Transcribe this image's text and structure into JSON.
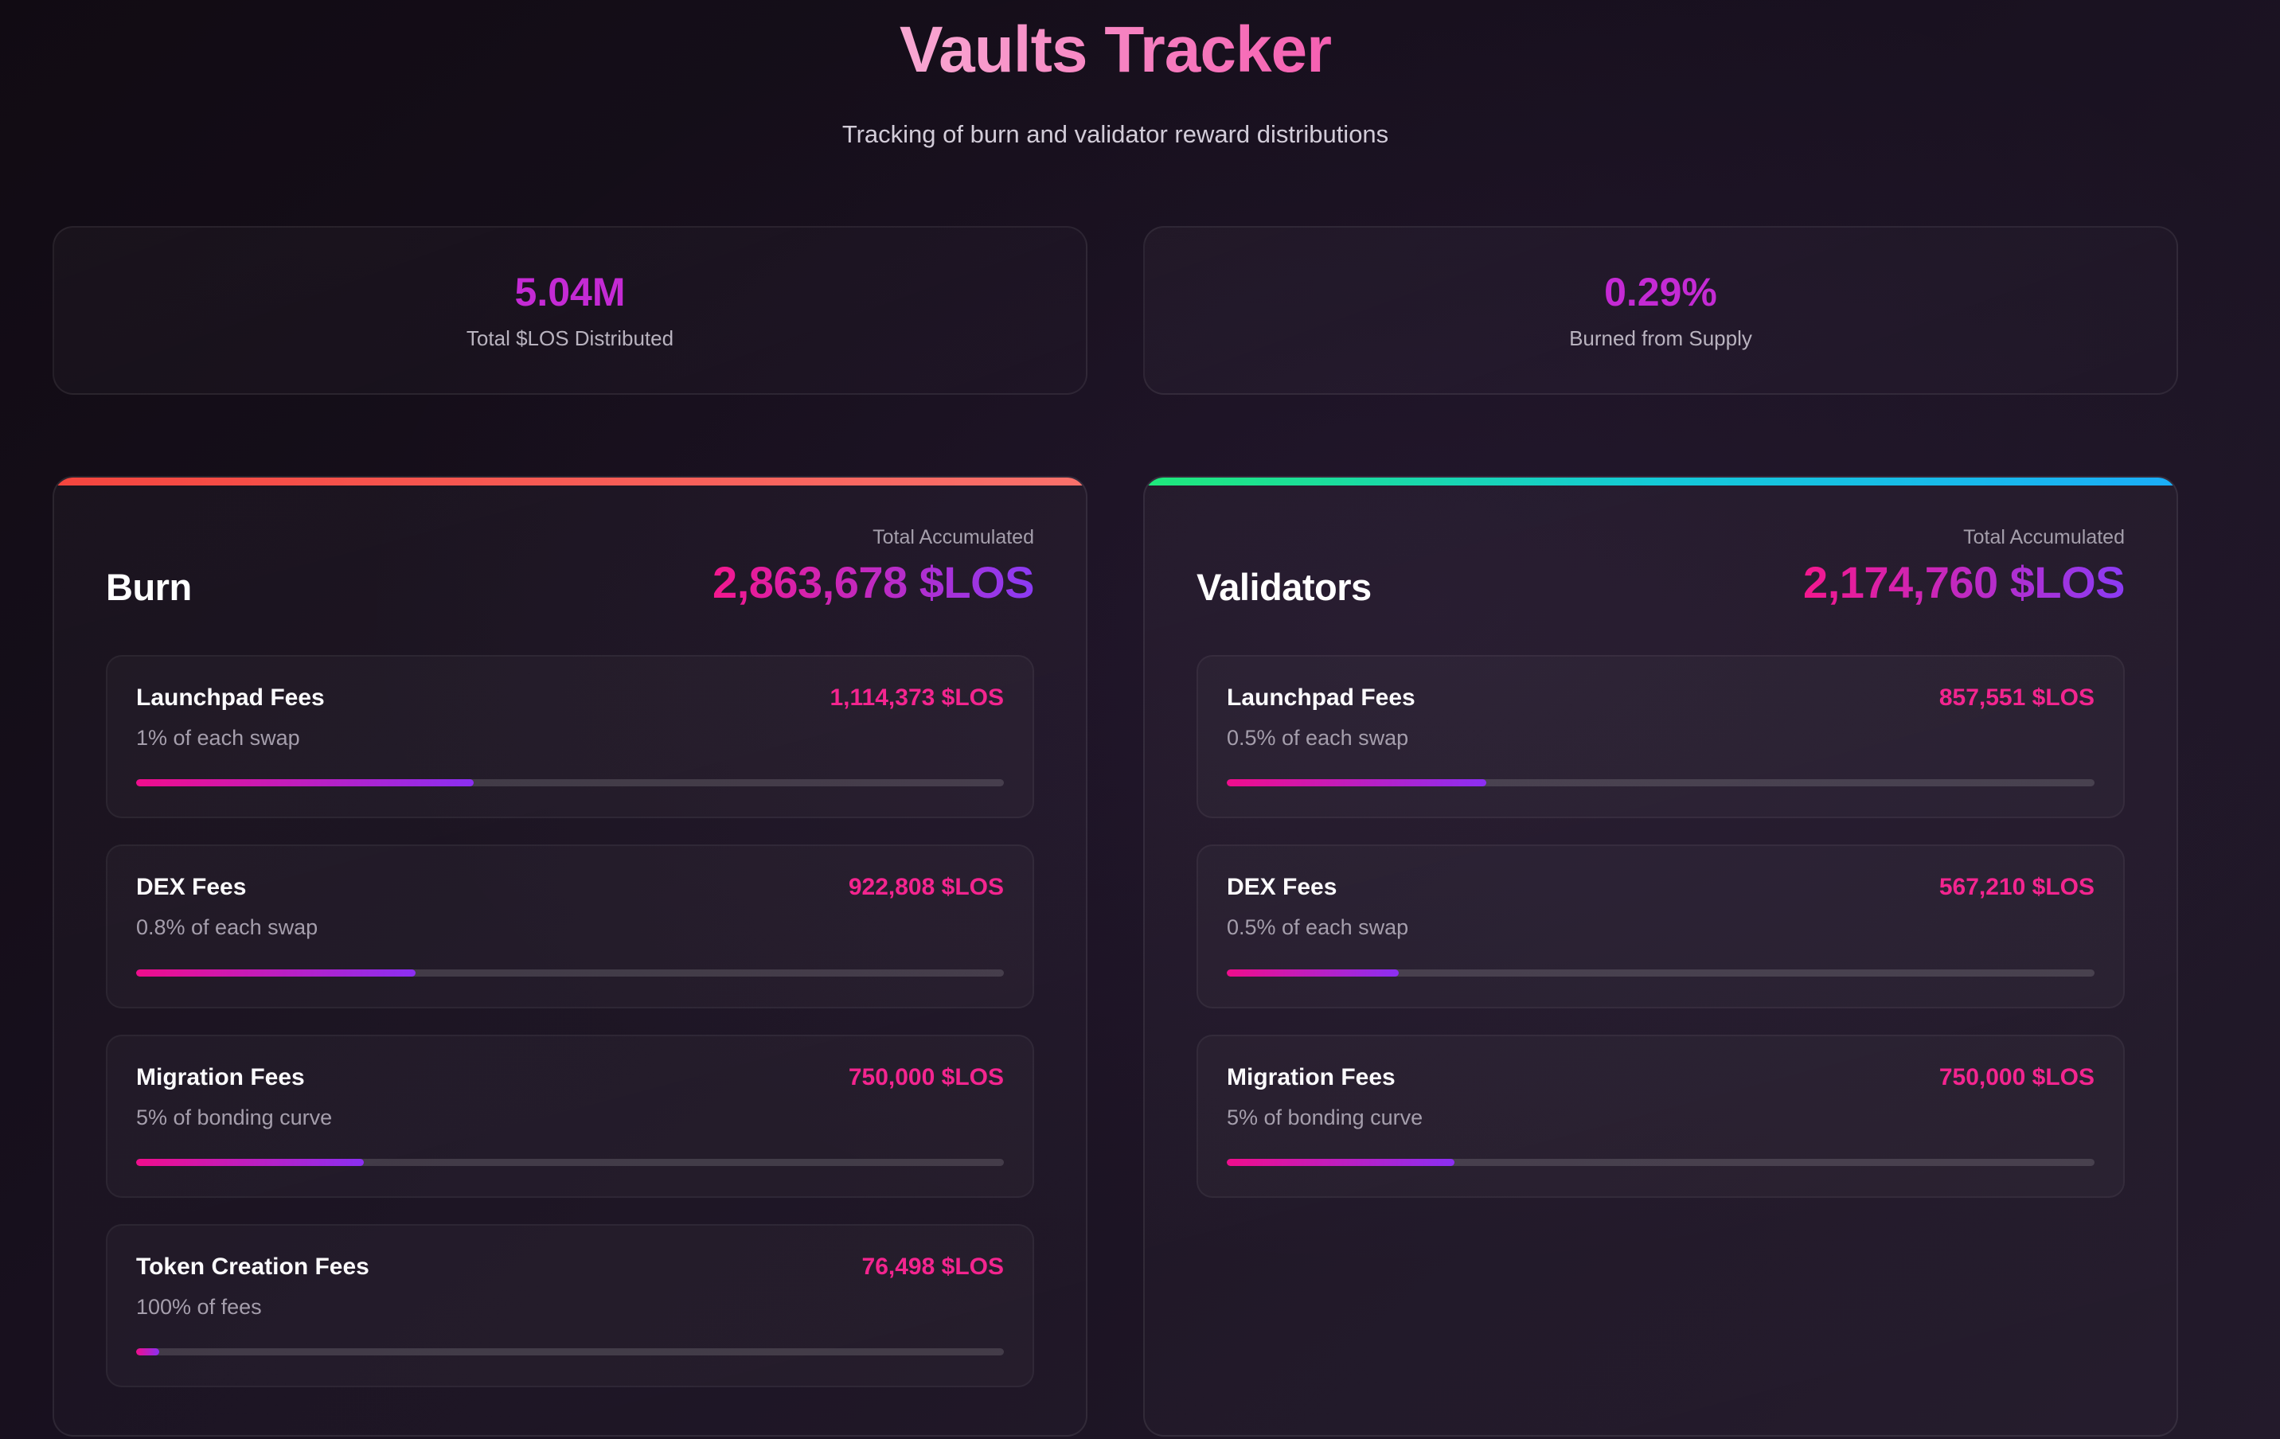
{
  "page": {
    "title": "Vaults Tracker",
    "subtitle": "Tracking of burn and validator reward distributions"
  },
  "colors": {
    "title_g1": "#f8a8d2",
    "title_g2": "#f55fb1",
    "stat_value": "#c42ad4",
    "fee_value": "#f3258f",
    "total_g1": "#f4188e",
    "total_g2": "#8b3bf4",
    "progress_g1": "#f00d8c",
    "progress_g2": "#8b2ff2"
  },
  "stats": [
    {
      "value": "5.04M",
      "label": "Total $LOS Distributed"
    },
    {
      "value": "0.29%",
      "label": "Burned from Supply"
    }
  ],
  "vaults": [
    {
      "name": "Burn",
      "total_label": "Total Accumulated",
      "total_value": "2,863,678 $LOS",
      "accent": [
        "#f4453e",
        "#f9716b"
      ],
      "fees": [
        {
          "label": "Launchpad Fees",
          "desc": "1% of each swap",
          "value": "1,114,373 $LOS",
          "progress_pct": 38.9
        },
        {
          "label": "DEX Fees",
          "desc": "0.8% of each swap",
          "value": "922,808 $LOS",
          "progress_pct": 32.2
        },
        {
          "label": "Migration Fees",
          "desc": "5% of bonding curve",
          "value": "750,000 $LOS",
          "progress_pct": 26.2
        },
        {
          "label": "Token Creation Fees",
          "desc": "100% of fees",
          "value": "76,498 $LOS",
          "progress_pct": 2.7
        }
      ]
    },
    {
      "name": "Validators",
      "total_label": "Total Accumulated",
      "total_value": "2,174,760 $LOS",
      "accent": [
        "#1fe87b",
        "#14c9d8",
        "#1badf7"
      ],
      "fees": [
        {
          "label": "Launchpad Fees",
          "desc": "0.5% of each swap",
          "value": "857,551 $LOS",
          "progress_pct": 29.9
        },
        {
          "label": "DEX Fees",
          "desc": "0.5% of each swap",
          "value": "567,210 $LOS",
          "progress_pct": 19.8
        },
        {
          "label": "Migration Fees",
          "desc": "5% of bonding curve",
          "value": "750,000 $LOS",
          "progress_pct": 26.2
        }
      ]
    }
  ]
}
